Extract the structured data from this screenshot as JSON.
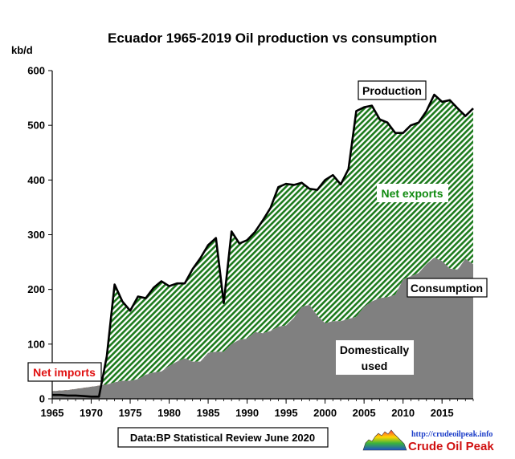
{
  "chart_data": {
    "type": "area",
    "title": "Ecuador 1965-2019 Oil production vs consumption",
    "ylabel": "kb/d",
    "xlabel": "",
    "xlim": [
      1965,
      2019
    ],
    "ylim": [
      0,
      600
    ],
    "y_ticks": [
      0,
      100,
      200,
      300,
      400,
      500,
      600
    ],
    "x_ticks": [
      1965,
      1970,
      1975,
      1980,
      1985,
      1990,
      1995,
      2000,
      2005,
      2010,
      2015
    ],
    "grid": false,
    "x": [
      1965,
      1966,
      1967,
      1968,
      1969,
      1970,
      1971,
      1972,
      1973,
      1974,
      1975,
      1976,
      1977,
      1978,
      1979,
      1980,
      1981,
      1982,
      1983,
      1984,
      1985,
      1986,
      1987,
      1988,
      1989,
      1990,
      1991,
      1992,
      1993,
      1994,
      1995,
      1996,
      1997,
      1998,
      1999,
      2000,
      2001,
      2002,
      2003,
      2004,
      2005,
      2006,
      2007,
      2008,
      2009,
      2010,
      2011,
      2012,
      2013,
      2014,
      2015,
      2016,
      2017,
      2018,
      2019
    ],
    "series": [
      {
        "name": "Production",
        "color": "#000000",
        "values": [
          7,
          7,
          6,
          6,
          5,
          4,
          4,
          78,
          209,
          178,
          161,
          187,
          184,
          203,
          215,
          206,
          211,
          211,
          237,
          257,
          281,
          294,
          175,
          306,
          284,
          290,
          305,
          326,
          349,
          387,
          393,
          391,
          395,
          384,
          382,
          400,
          409,
          392,
          420,
          526,
          533,
          536,
          511,
          505,
          486,
          486,
          500,
          505,
          526,
          556,
          543,
          546,
          531,
          517,
          531
        ]
      },
      {
        "name": "Consumption",
        "color": "#000000",
        "values": [
          14,
          15,
          16,
          18,
          20,
          22,
          24,
          26,
          30,
          33,
          33,
          36,
          44,
          48,
          50,
          60,
          68,
          74,
          68,
          68,
          84,
          86,
          86,
          100,
          108,
          110,
          122,
          120,
          124,
          132,
          134,
          148,
          168,
          172,
          152,
          138,
          142,
          142,
          146,
          150,
          168,
          178,
          184,
          186,
          190,
          218,
          224,
          230,
          246,
          258,
          252,
          238,
          236,
          256,
          246
        ]
      }
    ],
    "annotations": {
      "production": "Production",
      "net_exports": "Net exports",
      "consumption": "Consumption",
      "domestic_line1": "Domestically",
      "domestic_line2": "used",
      "net_imports": "Net imports",
      "source": "Data:BP Statistical Review June 2020"
    },
    "colors": {
      "consumption_fill": "#808080",
      "net_exports_hatch": "#1c7a1c",
      "net_imports_hatch": "#e03030",
      "net_exports_text": "#0f8a0f",
      "net_imports_text": "#e01010"
    }
  },
  "logo": {
    "url_text": "http://crudeoilpeak.info",
    "name": "Crude Oil Peak"
  }
}
